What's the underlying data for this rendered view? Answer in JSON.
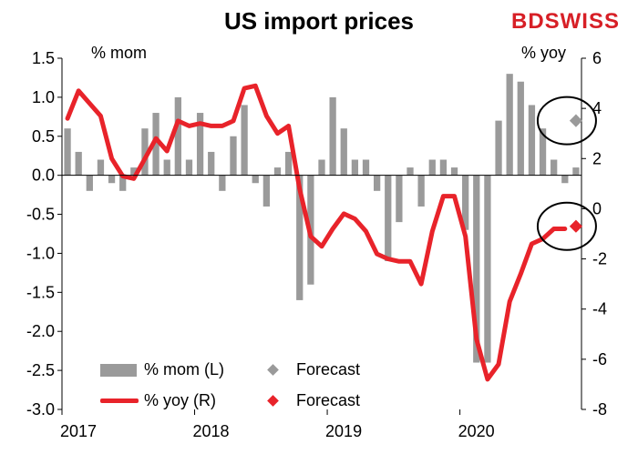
{
  "header": {
    "title": "US import prices",
    "brand": "BDSWISS",
    "left_unit": "% mom",
    "right_unit": "% yoy"
  },
  "legend": {
    "bar_label": "% mom (L)",
    "line_label": "% yoy (R)",
    "bar_forecast_label": "Forecast",
    "line_forecast_label": "Forecast"
  },
  "colors": {
    "bar": "#9a9a9a",
    "line": "#e8232a",
    "bar_forecast": "#9a9a9a",
    "line_forecast": "#e8232a",
    "circle": "#000000"
  },
  "chart_data": {
    "type": "bar+line",
    "title": "US import prices",
    "x_tick_labels": [
      "2017",
      "2018",
      "2019",
      "2020"
    ],
    "months": [
      "2017-01",
      "2017-02",
      "2017-03",
      "2017-04",
      "2017-05",
      "2017-06",
      "2017-07",
      "2017-08",
      "2017-09",
      "2017-10",
      "2017-11",
      "2017-12",
      "2018-01",
      "2018-02",
      "2018-03",
      "2018-04",
      "2018-05",
      "2018-06",
      "2018-07",
      "2018-08",
      "2018-09",
      "2018-10",
      "2018-11",
      "2018-12",
      "2019-01",
      "2019-02",
      "2019-03",
      "2019-04",
      "2019-05",
      "2019-06",
      "2019-07",
      "2019-08",
      "2019-09",
      "2019-10",
      "2019-11",
      "2019-12",
      "2020-01",
      "2020-02",
      "2020-03",
      "2020-04",
      "2020-05",
      "2020-06",
      "2020-07",
      "2020-08",
      "2020-09",
      "2020-10",
      "2020-11"
    ],
    "left_axis": {
      "label": "% mom",
      "ylim": [
        -3.0,
        1.5
      ],
      "ticks": [
        "1.5",
        "1.0",
        "0.5",
        "0.0",
        "-0.5",
        "-1.0",
        "-1.5",
        "-2.0",
        "-2.5",
        "-3.0"
      ]
    },
    "right_axis": {
      "label": "% yoy",
      "ylim": [
        -8,
        6
      ],
      "ticks": [
        "6",
        "4",
        "2",
        "0",
        "-2",
        "-4",
        "-6",
        "-8"
      ]
    },
    "series": [
      {
        "name": "% mom (L)",
        "type": "bar",
        "axis": "left",
        "values": [
          0.6,
          0.3,
          -0.2,
          0.2,
          -0.1,
          -0.2,
          0.1,
          0.6,
          0.8,
          0.2,
          1.0,
          0.2,
          0.8,
          0.3,
          -0.2,
          0.5,
          0.9,
          -0.1,
          -0.4,
          0.1,
          0.3,
          -1.6,
          -1.4,
          0.2,
          1.0,
          0.6,
          0.2,
          0.2,
          -0.2,
          -1.1,
          -0.6,
          0.1,
          -0.4,
          0.2,
          0.2,
          0.1,
          -0.7,
          -2.4,
          -2.4,
          0.7,
          1.3,
          1.2,
          0.9,
          0.6,
          0.2,
          -0.1,
          0.1
        ]
      },
      {
        "name": "% yoy (R)",
        "type": "line",
        "axis": "right",
        "values": [
          3.6,
          4.7,
          4.2,
          3.7,
          2.0,
          1.3,
          1.2,
          2.0,
          2.8,
          2.3,
          3.5,
          3.3,
          3.4,
          3.3,
          3.3,
          3.5,
          4.8,
          4.9,
          3.7,
          3.0,
          3.3,
          0.8,
          -1.1,
          -1.5,
          -0.8,
          -0.2,
          -0.4,
          -0.9,
          -1.8,
          -2.0,
          -2.1,
          -2.1,
          -3.0,
          -0.9,
          0.5,
          0.5,
          -1.1,
          -5.2,
          -6.8,
          -6.2,
          -3.7,
          -2.6,
          -1.4,
          -1.2,
          -0.8,
          -0.8
        ]
      }
    ],
    "forecasts": [
      {
        "name": "Forecast",
        "series": "% mom (L)",
        "axis": "left",
        "month": "2020-11",
        "value": 0.7
      },
      {
        "name": "Forecast",
        "series": "% yoy (R)",
        "axis": "right",
        "month": "2020-11",
        "value": -0.7
      }
    ]
  }
}
